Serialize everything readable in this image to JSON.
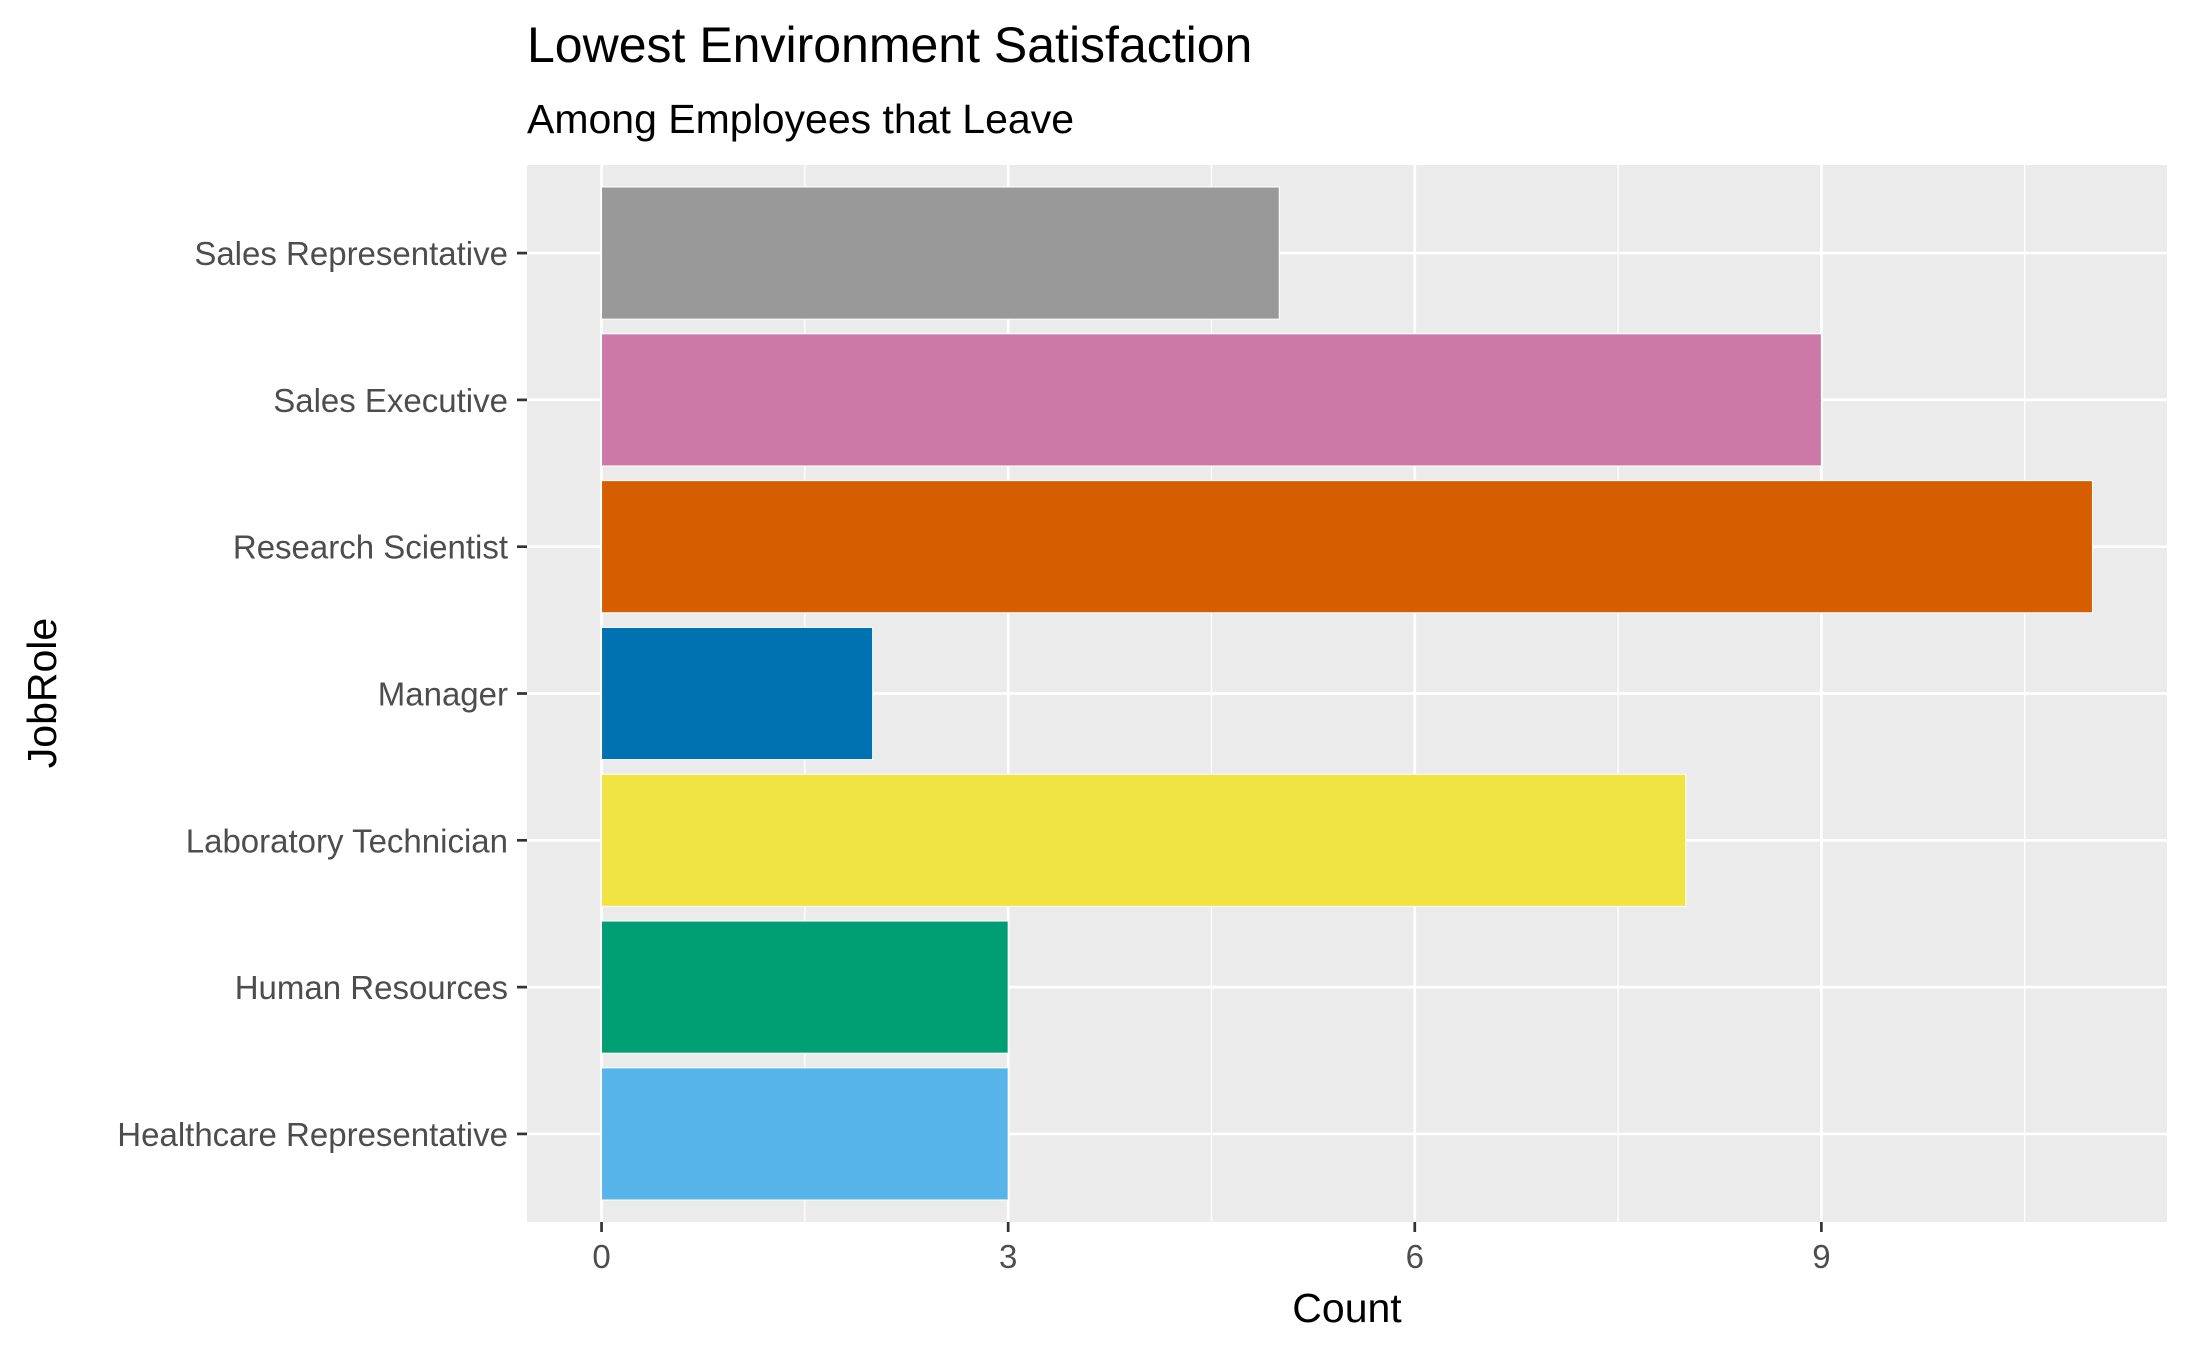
{
  "chart_data": {
    "type": "bar",
    "orientation": "horizontal",
    "title": "Lowest Environment Satisfaction",
    "subtitle": "Among Employees that Leave",
    "xlabel": "Count",
    "ylabel": "JobRole",
    "categories": [
      "Healthcare Representative",
      "Human Resources",
      "Laboratory Technician",
      "Manager",
      "Research Scientist",
      "Sales Executive",
      "Sales Representative"
    ],
    "values": [
      3,
      3,
      8,
      2,
      11,
      9,
      5
    ],
    "colors": [
      "#56B4E9",
      "#009E73",
      "#F0E442",
      "#0072B2",
      "#D55E00",
      "#CC79A7",
      "#999999"
    ],
    "xlim": [
      -0.55,
      11.55
    ],
    "xticks": [
      0,
      3,
      6,
      9
    ],
    "xtick_labels": [
      "0",
      "3",
      "6",
      "9"
    ],
    "x_minor_gridlines": [
      1.5,
      4.5,
      7.5,
      10.5
    ],
    "grid": true,
    "panel_background": "#EBEBEB",
    "legend": "none"
  }
}
